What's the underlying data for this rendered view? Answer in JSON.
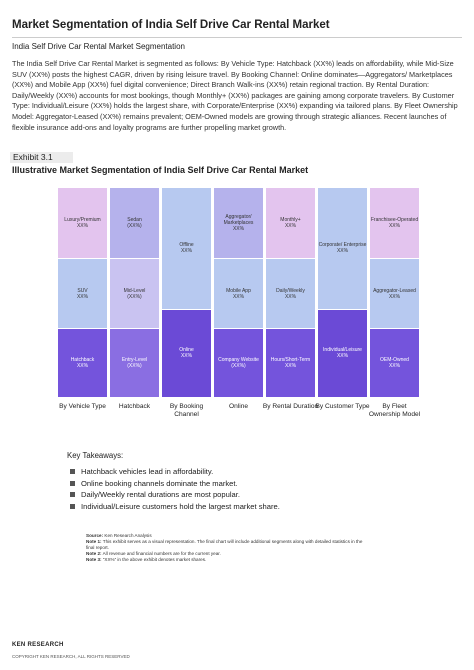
{
  "header": {
    "title": "Market Segmentation of India Self Drive Car Rental Market",
    "subtitle": "India Self Drive Car Rental Market Segmentation"
  },
  "body": {
    "paragraph": "The India Self Drive Car Rental Market is segmented as follows: By Vehicle Type: Hatchback (XX%) leads on affordability, while Mid-Size SUV (XX%) posts the highest CAGR, driven by rising leisure travel. By Booking Channel: Online dominates—Aggregators/ Marketplaces (XX%) and Mobile App (XX%) fuel digital convenience; Direct Branch Walk-ins (XX%) retain regional traction. By Rental Duration: Daily/Weekly (XX%) accounts for most bookings, though Monthly+ (XX%) packages are gaining among corporate travelers. By Customer Type: Individual/Leisure (XX%) holds the largest share, with Corporate/Enterprise (XX%) expanding via tailored plans. By Fleet Ownership Model: Aggregator-Leased (XX%) remains prevalent; OEM-Owned models are growing through strategic alliances. Recent launches of flexible insurance add-ons and loyalty programs are further propelling market growth."
  },
  "exhibit": {
    "number": "Exhibit 3.1",
    "title": "Illustrative Market Segmentation of India Self Drive Car Rental Market"
  },
  "chart_data": {
    "type": "stacked_bar",
    "ylim": [
      0,
      100
    ],
    "categories": [
      "By Vehicle Type",
      "Hatchback",
      "By Booking Channel",
      "Online",
      "By Rental Duration",
      "By Customer Type",
      "By Fleet Ownership Model"
    ],
    "stacks": [
      {
        "segments": [
          {
            "name": "Hatchback",
            "value": 33,
            "value_label": "XX%",
            "color": "#7454dc"
          },
          {
            "name": "SUV",
            "value": 33,
            "value_label": "XX%",
            "color": "#b7c9f0"
          },
          {
            "name": "Luxury/Premium",
            "value": 34,
            "value_label": "XX%",
            "color": "#e3c4ee"
          }
        ]
      },
      {
        "segments": [
          {
            "name": "Entry-Level",
            "value": 33,
            "value_label": "(XX%)",
            "color": "#8a6ee2"
          },
          {
            "name": "Mid-Level",
            "value": 33,
            "value_label": "(XX%)",
            "color": "#c9c3f1"
          },
          {
            "name": "Sedan",
            "value": 34,
            "value_label": "(XX%)",
            "color": "#b5b2ec"
          }
        ]
      },
      {
        "segments": [
          {
            "name": "Online",
            "value": 42,
            "value_label": "XX%",
            "color": "#6b4ad6"
          },
          {
            "name": "Offline",
            "value": 58,
            "value_label": "XX%",
            "color": "#b7c9f0"
          }
        ]
      },
      {
        "segments": [
          {
            "name": "Company Website",
            "value": 33,
            "value_label": "(XX%)",
            "color": "#7454dc"
          },
          {
            "name": "Mobile App",
            "value": 33,
            "value_label": "XX%",
            "color": "#b7c9f0"
          },
          {
            "name": "Aggregator/ Marketplaces",
            "value": 34,
            "value_label": "XX%",
            "color": "#b5b2ec"
          }
        ]
      },
      {
        "segments": [
          {
            "name": "Hours/Short-Term",
            "value": 33,
            "value_label": "XX%",
            "color": "#7454dc"
          },
          {
            "name": "Daily/Weekly",
            "value": 33,
            "value_label": "XX%",
            "color": "#b7c9f0"
          },
          {
            "name": "Monthly+",
            "value": 34,
            "value_label": "XX%",
            "color": "#e3c4ee"
          }
        ]
      },
      {
        "segments": [
          {
            "name": "Individual/Leisure",
            "value": 42,
            "value_label": "XX%",
            "color": "#6b4ad6"
          },
          {
            "name": "Corporate/ Enterprise",
            "value": 58,
            "value_label": "XX%",
            "color": "#b7c9f0"
          }
        ]
      },
      {
        "segments": [
          {
            "name": "OEM-Owned",
            "value": 33,
            "value_label": "XX%",
            "color": "#7454dc"
          },
          {
            "name": "Aggregator-Leased",
            "value": 33,
            "value_label": "XX%",
            "color": "#b7c9f0"
          },
          {
            "name": "Franchisee-Operated",
            "value": 34,
            "value_label": "XX%",
            "color": "#e3c4ee"
          }
        ]
      }
    ]
  },
  "takeaways": {
    "heading": "Key Takeaways:",
    "items": [
      "Hatchback vehicles lead in affordability.",
      "Online booking channels dominate the market.",
      "Daily/Weekly rental durations are most popular.",
      "Individual/Leisure customers hold the largest market share."
    ]
  },
  "notes": [
    {
      "label": "Source:",
      "text": "Ken Research Analysis"
    },
    {
      "label": "Note 1:",
      "text": "This exhibit serves as a visual representation. The final chart will include additional segments along with detailed statistics in the final report."
    },
    {
      "label": "Note 2:",
      "text": "All revenue and financial numbers are for the current year."
    },
    {
      "label": "Note 3:",
      "text": "“XX%” in the above exhibit denotes market shares."
    }
  ],
  "footer": {
    "logo": "KEN RESEARCH",
    "copyright": "COPYRIGHT KEN RESEARCH, ALL RIGHTS RESERVED"
  }
}
